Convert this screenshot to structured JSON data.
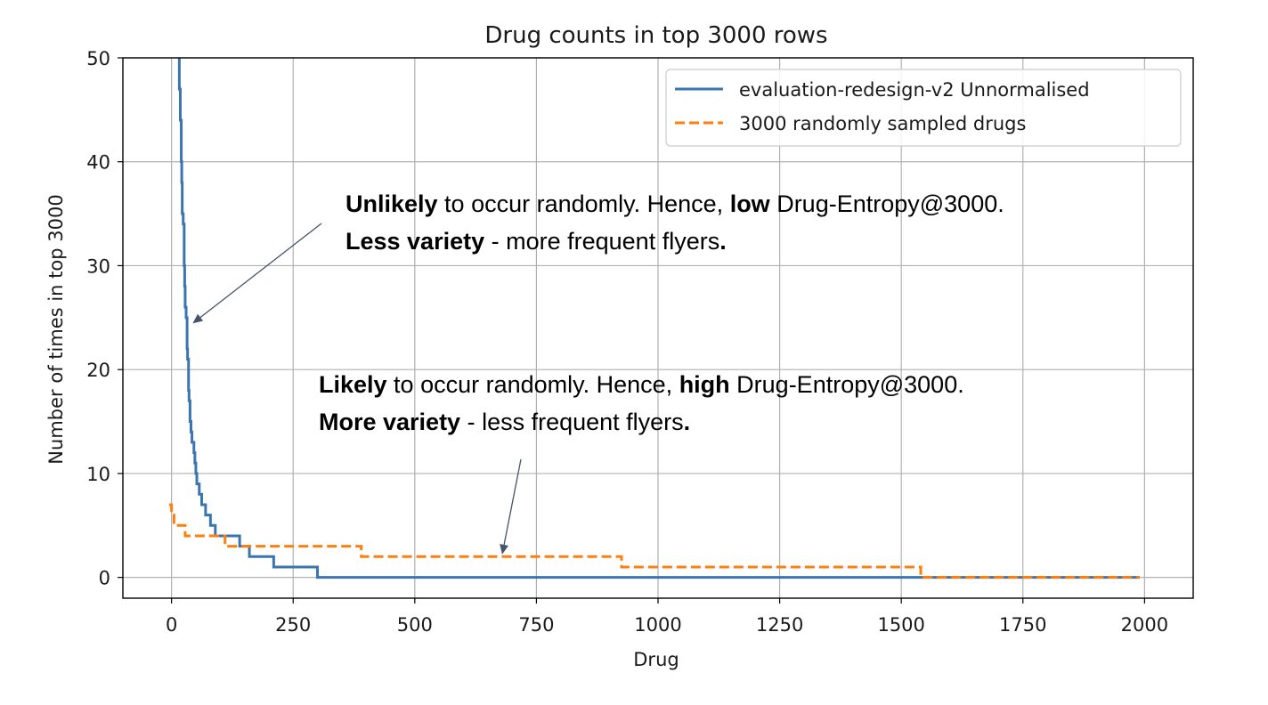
{
  "chart_data": {
    "type": "line",
    "title": "Drug counts in top 3000 rows",
    "xlabel": "Drug",
    "ylabel": "Number of times in top 3000",
    "xlim": [
      -100,
      2100
    ],
    "ylim": [
      -2,
      50
    ],
    "xticks": [
      0,
      250,
      500,
      750,
      1000,
      1250,
      1500,
      1750,
      2000
    ],
    "xtick_labels": [
      "0",
      "250",
      "500",
      "750",
      "1000",
      "1250",
      "1500",
      "1750",
      "2000"
    ],
    "yticks": [
      0,
      10,
      20,
      30,
      40,
      50
    ],
    "ytick_labels": [
      "0",
      "10",
      "20",
      "30",
      "40",
      "50"
    ],
    "grid": true,
    "legend_position": "top-right",
    "series": [
      {
        "name": "evaluation-redesign-v2 Unnormalised",
        "color": "#3a75b0",
        "style": "solid",
        "x": [
          14,
          16,
          18,
          20,
          21,
          22,
          24,
          26,
          27,
          28,
          30,
          32,
          33,
          35,
          36,
          38,
          40,
          42,
          44,
          46,
          48,
          50,
          52,
          55,
          57,
          60,
          62,
          66,
          70,
          75,
          80,
          86,
          90,
          98,
          105,
          115,
          120,
          135,
          140,
          155,
          160,
          200,
          210,
          250,
          295,
          300,
          1990
        ],
        "y": [
          50,
          47,
          44,
          40,
          38,
          35,
          34,
          30,
          28,
          26,
          25,
          22,
          21,
          18,
          17,
          15,
          14,
          13,
          13,
          12,
          11,
          10,
          9,
          9,
          8,
          8,
          7,
          7,
          6,
          6,
          5,
          5,
          4,
          4,
          4,
          4,
          4,
          4,
          3,
          3,
          2,
          2,
          1,
          1,
          1,
          0,
          0
        ],
        "step": "post"
      },
      {
        "name": "3000 randomly sampled drugs",
        "color": "#ff7f0e",
        "style": "dashed",
        "x": [
          -5,
          0,
          5,
          20,
          28,
          35,
          100,
          110,
          385,
          390,
          920,
          925,
          1535,
          1540,
          1990
        ],
        "y": [
          7,
          6,
          5,
          5,
          4,
          4,
          4,
          3,
          3,
          2,
          2,
          1,
          1,
          0,
          0
        ],
        "step": "post"
      }
    ],
    "annotations": [
      {
        "line1": [
          {
            "t": "Unlikely",
            "b": true
          },
          {
            "t": " to occur randomly. Hence, ",
            "b": false
          },
          {
            "t": "low",
            "b": true
          },
          {
            "t": " Drug-Entropy@3000.",
            "b": false
          }
        ],
        "line2": [
          {
            "t": "Less variety",
            "b": true
          },
          {
            "t": " - more frequent flyers",
            "b": false
          },
          {
            "t": ".",
            "b": true
          }
        ],
        "arrow_to": {
          "x": 45,
          "y": 24.5
        }
      },
      {
        "line1": [
          {
            "t": "Likely",
            "b": true
          },
          {
            "t": " to occur randomly. Hence, ",
            "b": false
          },
          {
            "t": "high",
            "b": true
          },
          {
            "t": " Drug-Entropy@3000.",
            "b": false
          }
        ],
        "line2": [
          {
            "t": "More variety",
            "b": true
          },
          {
            "t": " - less frequent flyers",
            "b": false
          },
          {
            "t": ".",
            "b": true
          }
        ],
        "arrow_to": {
          "x": 680,
          "y": 2.3
        }
      }
    ]
  }
}
